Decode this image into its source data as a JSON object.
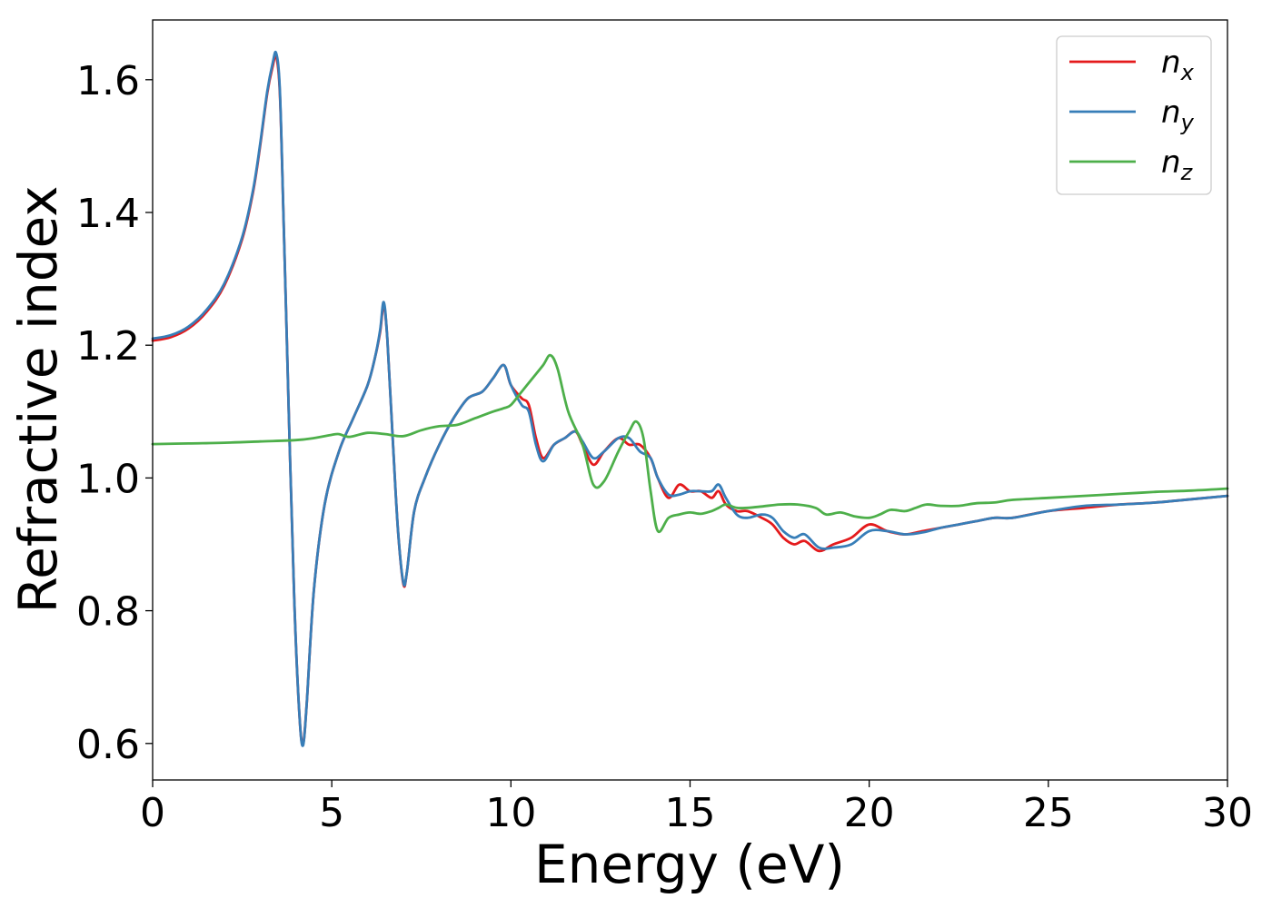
{
  "chart_data": {
    "type": "line",
    "title": "",
    "xlabel": "Energy (eV)",
    "ylabel": "Refractive index",
    "xlim": [
      0,
      30
    ],
    "ylim": [
      0.545,
      1.69
    ],
    "xticks": [
      "0",
      "5",
      "10",
      "15",
      "20",
      "25",
      "30"
    ],
    "yticks": [
      "0.6",
      "0.8",
      "1.0",
      "1.2",
      "1.4",
      "1.6"
    ],
    "grid": false,
    "legend_position": "top-right",
    "series": [
      {
        "name": "n",
        "subscript": "x",
        "color": "#e41a1c",
        "x": [
          0,
          0.5,
          1,
          1.5,
          2,
          2.5,
          2.8,
          3.0,
          3.2,
          3.35,
          3.45,
          3.55,
          3.65,
          3.8,
          3.95,
          4.1,
          4.2,
          4.3,
          4.5,
          4.8,
          5.2,
          5.6,
          6.0,
          6.2,
          6.35,
          6.45,
          6.55,
          6.7,
          6.85,
          7.0,
          7.1,
          7.3,
          7.6,
          8.0,
          8.4,
          8.8,
          9.2,
          9.5,
          9.8,
          10.0,
          10.3,
          10.5,
          10.7,
          10.9,
          11.2,
          11.5,
          11.8,
          12.0,
          12.3,
          12.6,
          13.0,
          13.3,
          13.6,
          13.9,
          14.1,
          14.4,
          14.7,
          15.0,
          15.3,
          15.6,
          15.8,
          16.0,
          16.3,
          16.6,
          17.0,
          17.3,
          17.6,
          17.9,
          18.2,
          18.6,
          19.0,
          19.5,
          20.0,
          20.5,
          21.0,
          21.5,
          22.0,
          22.5,
          23.0,
          23.5,
          24.0,
          25.0,
          26.0,
          27.0,
          28.0,
          29.0,
          30.0
        ],
        "y": [
          1.207,
          1.212,
          1.225,
          1.25,
          1.29,
          1.36,
          1.43,
          1.5,
          1.58,
          1.62,
          1.635,
          1.58,
          1.4,
          1.1,
          0.82,
          0.64,
          0.6,
          0.66,
          0.83,
          0.96,
          1.04,
          1.09,
          1.14,
          1.18,
          1.22,
          1.26,
          1.21,
          1.06,
          0.92,
          0.84,
          0.86,
          0.95,
          1.0,
          1.05,
          1.09,
          1.12,
          1.13,
          1.15,
          1.17,
          1.14,
          1.12,
          1.11,
          1.06,
          1.03,
          1.05,
          1.06,
          1.07,
          1.05,
          1.02,
          1.04,
          1.06,
          1.05,
          1.05,
          1.03,
          1.0,
          0.97,
          0.99,
          0.98,
          0.98,
          0.97,
          0.98,
          0.96,
          0.95,
          0.95,
          0.94,
          0.93,
          0.91,
          0.9,
          0.905,
          0.89,
          0.9,
          0.91,
          0.93,
          0.92,
          0.915,
          0.92,
          0.925,
          0.93,
          0.935,
          0.94,
          0.94,
          0.95,
          0.955,
          0.96,
          0.963,
          0.968,
          0.973
        ]
      },
      {
        "name": "n",
        "subscript": "y",
        "color": "#377eb8",
        "x": [
          0,
          0.5,
          1,
          1.5,
          2,
          2.5,
          2.8,
          3.0,
          3.2,
          3.35,
          3.45,
          3.55,
          3.65,
          3.8,
          3.95,
          4.1,
          4.2,
          4.3,
          4.5,
          4.8,
          5.2,
          5.6,
          6.0,
          6.2,
          6.35,
          6.45,
          6.55,
          6.7,
          6.85,
          7.0,
          7.1,
          7.3,
          7.6,
          8.0,
          8.4,
          8.8,
          9.2,
          9.5,
          9.8,
          10.0,
          10.3,
          10.5,
          10.7,
          10.9,
          11.2,
          11.5,
          11.8,
          12.0,
          12.3,
          12.6,
          13.0,
          13.3,
          13.6,
          13.9,
          14.1,
          14.4,
          14.7,
          15.0,
          15.3,
          15.6,
          15.8,
          16.0,
          16.3,
          16.6,
          17.0,
          17.3,
          17.6,
          17.9,
          18.2,
          18.6,
          19.0,
          19.5,
          20.0,
          20.5,
          21.0,
          21.5,
          22.0,
          22.5,
          23.0,
          23.5,
          24.0,
          25.0,
          26.0,
          27.0,
          28.0,
          29.0,
          30.0
        ],
        "y": [
          1.21,
          1.215,
          1.228,
          1.253,
          1.293,
          1.363,
          1.433,
          1.503,
          1.583,
          1.625,
          1.64,
          1.585,
          1.4,
          1.1,
          0.82,
          0.64,
          0.597,
          0.66,
          0.83,
          0.96,
          1.04,
          1.09,
          1.14,
          1.18,
          1.223,
          1.265,
          1.21,
          1.06,
          0.92,
          0.842,
          0.86,
          0.95,
          1.0,
          1.05,
          1.09,
          1.12,
          1.13,
          1.15,
          1.17,
          1.14,
          1.11,
          1.1,
          1.05,
          1.025,
          1.05,
          1.06,
          1.07,
          1.055,
          1.03,
          1.04,
          1.06,
          1.06,
          1.04,
          1.03,
          1.0,
          0.975,
          0.975,
          0.98,
          0.98,
          0.98,
          0.99,
          0.97,
          0.945,
          0.94,
          0.945,
          0.94,
          0.92,
          0.91,
          0.915,
          0.895,
          0.895,
          0.9,
          0.92,
          0.92,
          0.915,
          0.918,
          0.925,
          0.93,
          0.935,
          0.94,
          0.94,
          0.95,
          0.958,
          0.96,
          0.963,
          0.968,
          0.973
        ]
      },
      {
        "name": "n",
        "subscript": "z",
        "color": "#4daf4a",
        "x": [
          0,
          1,
          2,
          3,
          4,
          4.5,
          5.0,
          5.2,
          5.5,
          6.0,
          6.5,
          7.0,
          7.5,
          8.0,
          8.5,
          9.0,
          9.5,
          9.8,
          10.0,
          10.3,
          10.6,
          10.9,
          11.1,
          11.3,
          11.6,
          12.0,
          12.3,
          12.6,
          13.0,
          13.3,
          13.5,
          13.7,
          13.9,
          14.1,
          14.4,
          14.7,
          15.0,
          15.3,
          15.6,
          15.8,
          16.0,
          16.3,
          16.6,
          17.0,
          17.5,
          18.0,
          18.5,
          18.8,
          19.2,
          19.6,
          20.0,
          20.3,
          20.6,
          21.0,
          21.3,
          21.6,
          22.0,
          22.5,
          23.0,
          23.5,
          24.0,
          25.0,
          26.0,
          27.0,
          28.0,
          29.0,
          30.0
        ],
        "y": [
          1.051,
          1.052,
          1.053,
          1.055,
          1.057,
          1.06,
          1.065,
          1.066,
          1.062,
          1.068,
          1.066,
          1.063,
          1.072,
          1.078,
          1.08,
          1.09,
          1.1,
          1.105,
          1.11,
          1.13,
          1.15,
          1.17,
          1.185,
          1.165,
          1.1,
          1.05,
          0.99,
          0.995,
          1.04,
          1.07,
          1.085,
          1.06,
          0.98,
          0.92,
          0.94,
          0.945,
          0.948,
          0.946,
          0.95,
          0.955,
          0.96,
          0.955,
          0.955,
          0.957,
          0.96,
          0.96,
          0.955,
          0.945,
          0.948,
          0.942,
          0.94,
          0.945,
          0.952,
          0.95,
          0.955,
          0.96,
          0.958,
          0.958,
          0.962,
          0.963,
          0.967,
          0.97,
          0.973,
          0.976,
          0.979,
          0.981,
          0.984
        ]
      }
    ]
  }
}
